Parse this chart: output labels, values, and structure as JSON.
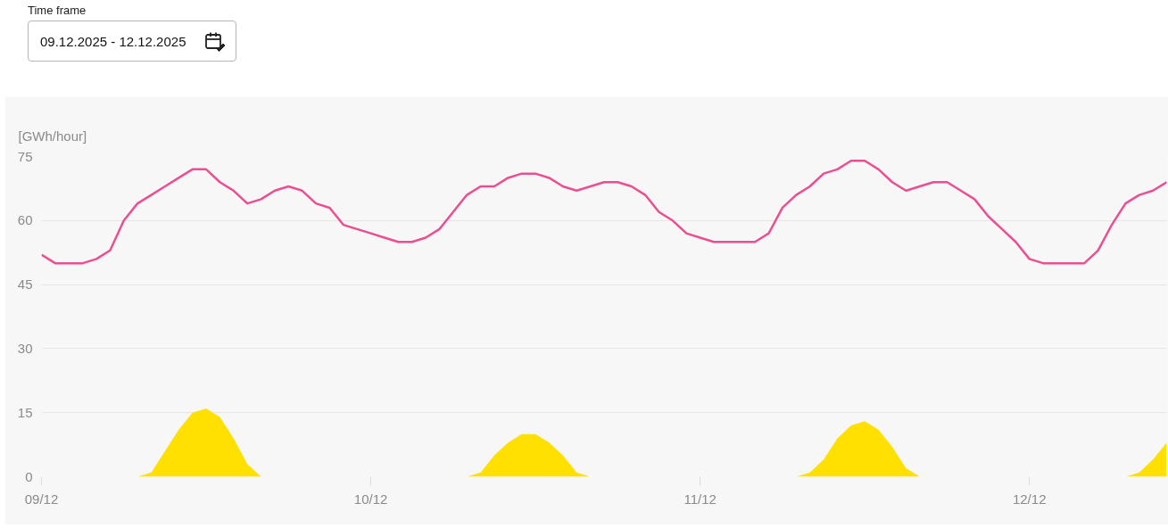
{
  "chart_data": {
    "type": "line",
    "annotations": [
      "Time frame",
      "09.12.2025 - 12.12.2025"
    ],
    "ylabel": "[GWh/hour]",
    "x": [
      "2025-12-09T00:00",
      "2025-12-09T01:00",
      "2025-12-09T02:00",
      "2025-12-09T03:00",
      "2025-12-09T04:00",
      "2025-12-09T05:00",
      "2025-12-09T06:00",
      "2025-12-09T07:00",
      "2025-12-09T08:00",
      "2025-12-09T09:00",
      "2025-12-09T10:00",
      "2025-12-09T11:00",
      "2025-12-09T12:00",
      "2025-12-09T13:00",
      "2025-12-09T14:00",
      "2025-12-09T15:00",
      "2025-12-09T16:00",
      "2025-12-09T17:00",
      "2025-12-09T18:00",
      "2025-12-09T19:00",
      "2025-12-09T20:00",
      "2025-12-09T21:00",
      "2025-12-09T22:00",
      "2025-12-09T23:00",
      "2025-12-10T00:00",
      "2025-12-10T01:00",
      "2025-12-10T02:00",
      "2025-12-10T03:00",
      "2025-12-10T04:00",
      "2025-12-10T05:00",
      "2025-12-10T06:00",
      "2025-12-10T07:00",
      "2025-12-10T08:00",
      "2025-12-10T09:00",
      "2025-12-10T10:00",
      "2025-12-10T11:00",
      "2025-12-10T12:00",
      "2025-12-10T13:00",
      "2025-12-10T14:00",
      "2025-12-10T15:00",
      "2025-12-10T16:00",
      "2025-12-10T17:00",
      "2025-12-10T18:00",
      "2025-12-10T19:00",
      "2025-12-10T20:00",
      "2025-12-10T21:00",
      "2025-12-10T22:00",
      "2025-12-10T23:00",
      "2025-12-11T00:00",
      "2025-12-11T01:00",
      "2025-12-11T02:00",
      "2025-12-11T03:00",
      "2025-12-11T04:00",
      "2025-12-11T05:00",
      "2025-12-11T06:00",
      "2025-12-11T07:00",
      "2025-12-11T08:00",
      "2025-12-11T09:00",
      "2025-12-11T10:00",
      "2025-12-11T11:00",
      "2025-12-11T12:00",
      "2025-12-11T13:00",
      "2025-12-11T14:00",
      "2025-12-11T15:00",
      "2025-12-11T16:00",
      "2025-12-11T17:00",
      "2025-12-11T18:00",
      "2025-12-11T19:00",
      "2025-12-11T20:00",
      "2025-12-11T21:00",
      "2025-12-11T22:00",
      "2025-12-11T23:00",
      "2025-12-12T00:00",
      "2025-12-12T01:00",
      "2025-12-12T02:00",
      "2025-12-12T03:00",
      "2025-12-12T04:00",
      "2025-12-12T05:00",
      "2025-12-12T06:00",
      "2025-12-12T07:00",
      "2025-12-12T08:00",
      "2025-12-12T09:00",
      "2025-12-12T10:00"
    ],
    "series": [
      {
        "color": "#ec4f91",
        "values": [
          52,
          50,
          50,
          50,
          51,
          53,
          60,
          64,
          66,
          68,
          70,
          72,
          72,
          69,
          67,
          64,
          65,
          67,
          68,
          67,
          64,
          63,
          59,
          58,
          57,
          56,
          55,
          55,
          56,
          58,
          62,
          66,
          68,
          68,
          70,
          71,
          71,
          70,
          68,
          67,
          68,
          69,
          69,
          68,
          66,
          62,
          60,
          57,
          56,
          55,
          55,
          55,
          55,
          57,
          63,
          66,
          68,
          71,
          72,
          74,
          74,
          72,
          69,
          67,
          68,
          69,
          69,
          67,
          65,
          61,
          58,
          55,
          51,
          50,
          50,
          50,
          50,
          53,
          59,
          64,
          66,
          67,
          69
        ]
      },
      {
        "type": "area",
        "color": "#ffe000",
        "values": [
          0,
          0,
          0,
          0,
          0,
          0,
          0,
          0,
          1,
          6,
          11,
          15,
          16,
          14,
          9,
          3,
          0,
          0,
          0,
          0,
          0,
          0,
          0,
          0,
          0,
          0,
          0,
          0,
          0,
          0,
          0,
          0,
          1,
          5,
          8,
          10,
          10,
          8,
          5,
          1,
          0,
          0,
          0,
          0,
          0,
          0,
          0,
          0,
          0,
          0,
          0,
          0,
          0,
          0,
          0,
          0,
          1,
          4,
          9,
          12,
          13,
          11,
          7,
          2,
          0,
          0,
          0,
          0,
          0,
          0,
          0,
          0,
          0,
          0,
          0,
          0,
          0,
          0,
          0,
          0,
          1,
          4,
          8
        ]
      }
    ],
    "xlim": [
      "2025-12-09T00:00",
      "2025-12-12T10:00"
    ],
    "xticks": [
      {
        "value": "2025-12-09",
        "label": "09/12"
      },
      {
        "value": "2025-12-10",
        "label": "10/12"
      },
      {
        "value": "2025-12-11",
        "label": "11/12"
      },
      {
        "value": "2025-12-12",
        "label": "12/12"
      }
    ],
    "ylim": [
      0,
      75
    ],
    "yticks": [
      0,
      15,
      30,
      45,
      60,
      75
    ],
    "grid": "y"
  }
}
